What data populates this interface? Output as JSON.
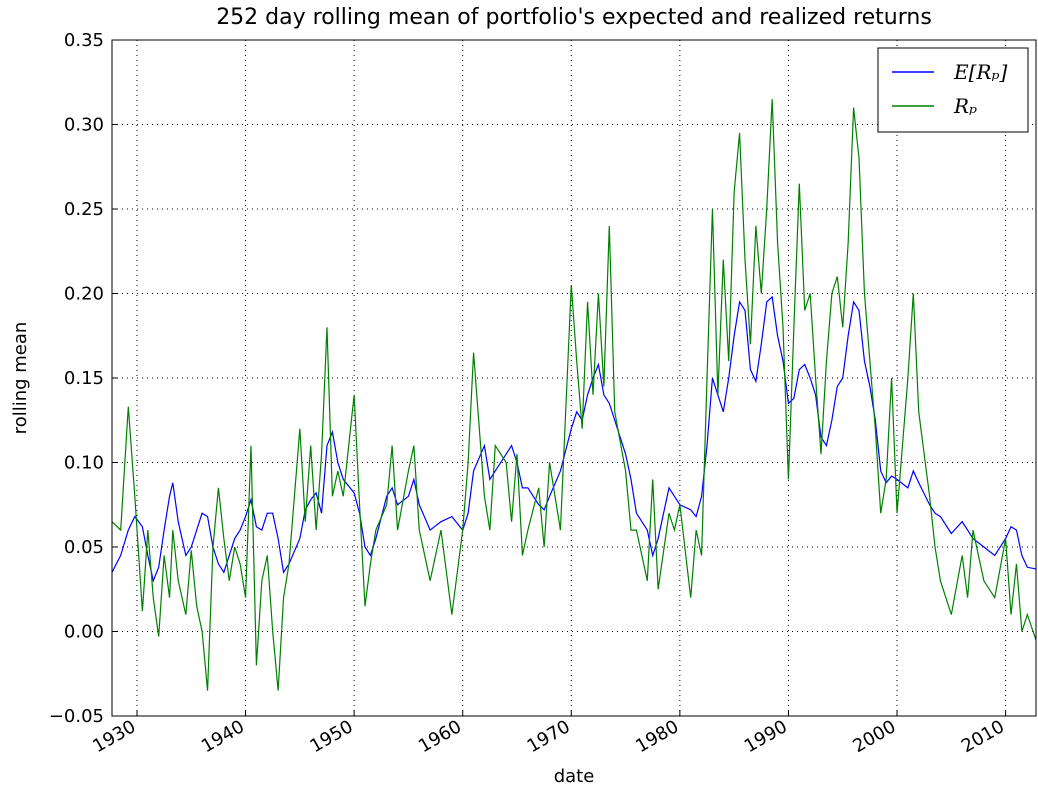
{
  "chart_data": {
    "type": "line",
    "title": "252 day rolling mean of portfolio's expected and realized returns",
    "x_label": "date",
    "y_label": "rolling mean",
    "x": [
      1927.7,
      1928.5,
      1929.2,
      1929.8,
      1930.5,
      1931,
      1931.5,
      1932,
      1932.5,
      1933,
      1933.3,
      1933.8,
      1934.5,
      1935,
      1935.5,
      1936,
      1936.5,
      1937,
      1937.5,
      1938,
      1938.5,
      1939,
      1939.5,
      1940,
      1940.5,
      1941,
      1941.5,
      1942,
      1942.5,
      1943,
      1943.5,
      1944,
      1945,
      1945.5,
      1946,
      1946.5,
      1947,
      1947.5,
      1948,
      1948.5,
      1949,
      1950,
      1950.5,
      1951,
      1951.5,
      1952,
      1953,
      1953.5,
      1954,
      1955,
      1955.5,
      1956,
      1957,
      1958,
      1959,
      1960,
      1960.5,
      1961,
      1962,
      1962.5,
      1963,
      1964,
      1964.5,
      1965,
      1965.5,
      1966,
      1967,
      1967.5,
      1968,
      1969,
      1970,
      1970.5,
      1971,
      1971.5,
      1972,
      1972.5,
      1973,
      1973.5,
      1974,
      1975,
      1975.5,
      1976,
      1977,
      1977.5,
      1978,
      1979,
      1979.5,
      1980,
      1981,
      1981.5,
      1982,
      1982.5,
      1983,
      1983.5,
      1984,
      1984.5,
      1985,
      1985.5,
      1986,
      1986.5,
      1987,
      1987.5,
      1988,
      1988.5,
      1989,
      1989.5,
      1990,
      1990.5,
      1991,
      1991.5,
      1992,
      1992.5,
      1993,
      1993.5,
      1994,
      1994.5,
      1995,
      1995.5,
      1996,
      1996.5,
      1997,
      1997.5,
      1998,
      1998.5,
      1999,
      1999.5,
      2000,
      2001,
      2001.5,
      2002,
      2003,
      2003.5,
      2004,
      2005,
      2006,
      2006.5,
      2007,
      2008,
      2009,
      2010,
      2010.5,
      2011,
      2011.5,
      2012,
      2012.8
    ],
    "series": [
      {
        "name": "E[Rₚ]",
        "color": "#0000ff",
        "values": [
          0.035,
          0.045,
          0.06,
          0.068,
          0.062,
          0.045,
          0.03,
          0.038,
          0.06,
          0.08,
          0.088,
          0.065,
          0.045,
          0.05,
          0.06,
          0.07,
          0.068,
          0.05,
          0.04,
          0.035,
          0.045,
          0.055,
          0.06,
          0.068,
          0.078,
          0.062,
          0.06,
          0.07,
          0.07,
          0.055,
          0.035,
          0.04,
          0.055,
          0.072,
          0.078,
          0.082,
          0.07,
          0.11,
          0.118,
          0.1,
          0.09,
          0.082,
          0.07,
          0.05,
          0.045,
          0.055,
          0.08,
          0.085,
          0.075,
          0.08,
          0.09,
          0.075,
          0.06,
          0.065,
          0.068,
          0.06,
          0.07,
          0.095,
          0.11,
          0.09,
          0.095,
          0.105,
          0.11,
          0.1,
          0.085,
          0.085,
          0.075,
          0.072,
          0.08,
          0.095,
          0.12,
          0.13,
          0.125,
          0.14,
          0.15,
          0.158,
          0.14,
          0.135,
          0.125,
          0.105,
          0.09,
          0.07,
          0.06,
          0.045,
          0.055,
          0.085,
          0.08,
          0.075,
          0.072,
          0.068,
          0.08,
          0.11,
          0.15,
          0.14,
          0.13,
          0.15,
          0.175,
          0.195,
          0.19,
          0.155,
          0.148,
          0.17,
          0.195,
          0.198,
          0.175,
          0.16,
          0.135,
          0.138,
          0.155,
          0.158,
          0.15,
          0.14,
          0.115,
          0.11,
          0.125,
          0.145,
          0.15,
          0.175,
          0.195,
          0.19,
          0.16,
          0.145,
          0.125,
          0.095,
          0.088,
          0.092,
          0.09,
          0.085,
          0.095,
          0.088,
          0.075,
          0.07,
          0.068,
          0.058,
          0.065,
          0.06,
          0.055,
          0.05,
          0.045,
          0.055,
          0.062,
          0.06,
          0.045,
          0.038,
          0.037
        ]
      },
      {
        "name": "Rₚ",
        "color": "#008000",
        "values": [
          0.065,
          0.06,
          0.133,
          0.08,
          0.012,
          0.06,
          0.02,
          -0.003,
          0.045,
          0.02,
          0.06,
          0.03,
          0.01,
          0.048,
          0.015,
          0,
          -0.035,
          0.05,
          0.085,
          0.055,
          0.03,
          0.05,
          0.04,
          0.02,
          0.11,
          -0.02,
          0.03,
          0.045,
          0,
          -0.035,
          0.02,
          0.04,
          0.12,
          0.065,
          0.11,
          0.06,
          0.105,
          0.18,
          0.08,
          0.095,
          0.08,
          0.14,
          0.075,
          0.015,
          0.04,
          0.06,
          0.075,
          0.11,
          0.06,
          0.095,
          0.11,
          0.06,
          0.03,
          0.06,
          0.01,
          0.06,
          0.1,
          0.165,
          0.08,
          0.06,
          0.11,
          0.1,
          0.065,
          0.105,
          0.045,
          0.06,
          0.085,
          0.05,
          0.1,
          0.06,
          0.205,
          0.16,
          0.12,
          0.195,
          0.14,
          0.2,
          0.145,
          0.24,
          0.13,
          0.095,
          0.06,
          0.06,
          0.03,
          0.09,
          0.025,
          0.07,
          0.06,
          0.075,
          0.02,
          0.06,
          0.045,
          0.15,
          0.25,
          0.14,
          0.22,
          0.16,
          0.26,
          0.295,
          0.22,
          0.17,
          0.24,
          0.2,
          0.25,
          0.315,
          0.23,
          0.18,
          0.09,
          0.18,
          0.265,
          0.19,
          0.2,
          0.15,
          0.105,
          0.16,
          0.2,
          0.21,
          0.18,
          0.23,
          0.31,
          0.28,
          0.2,
          0.16,
          0.12,
          0.07,
          0.09,
          0.15,
          0.07,
          0.15,
          0.2,
          0.13,
          0.08,
          0.05,
          0.03,
          0.01,
          0.045,
          0.02,
          0.06,
          0.03,
          0.02,
          0.055,
          0.01,
          0.04,
          0,
          0.01,
          -0.005
        ]
      }
    ],
    "xlim": [
      1927.7,
      2012.8
    ],
    "xticks": [
      1930,
      1940,
      1950,
      1960,
      1970,
      1980,
      1990,
      2000,
      2010
    ],
    "ylim": [
      -0.05,
      0.35
    ],
    "yticks": [
      {
        "value": -0.05,
        "label": "−0.05"
      },
      {
        "value": 0,
        "label": "0.00"
      },
      0.05,
      {
        "value": 0.1,
        "label": "0.10"
      },
      0.15,
      {
        "value": 0.2,
        "label": "0.20"
      },
      0.25,
      {
        "value": 0.3,
        "label": "0.30"
      },
      0.35
    ],
    "grid": true,
    "legend": "upper right"
  }
}
